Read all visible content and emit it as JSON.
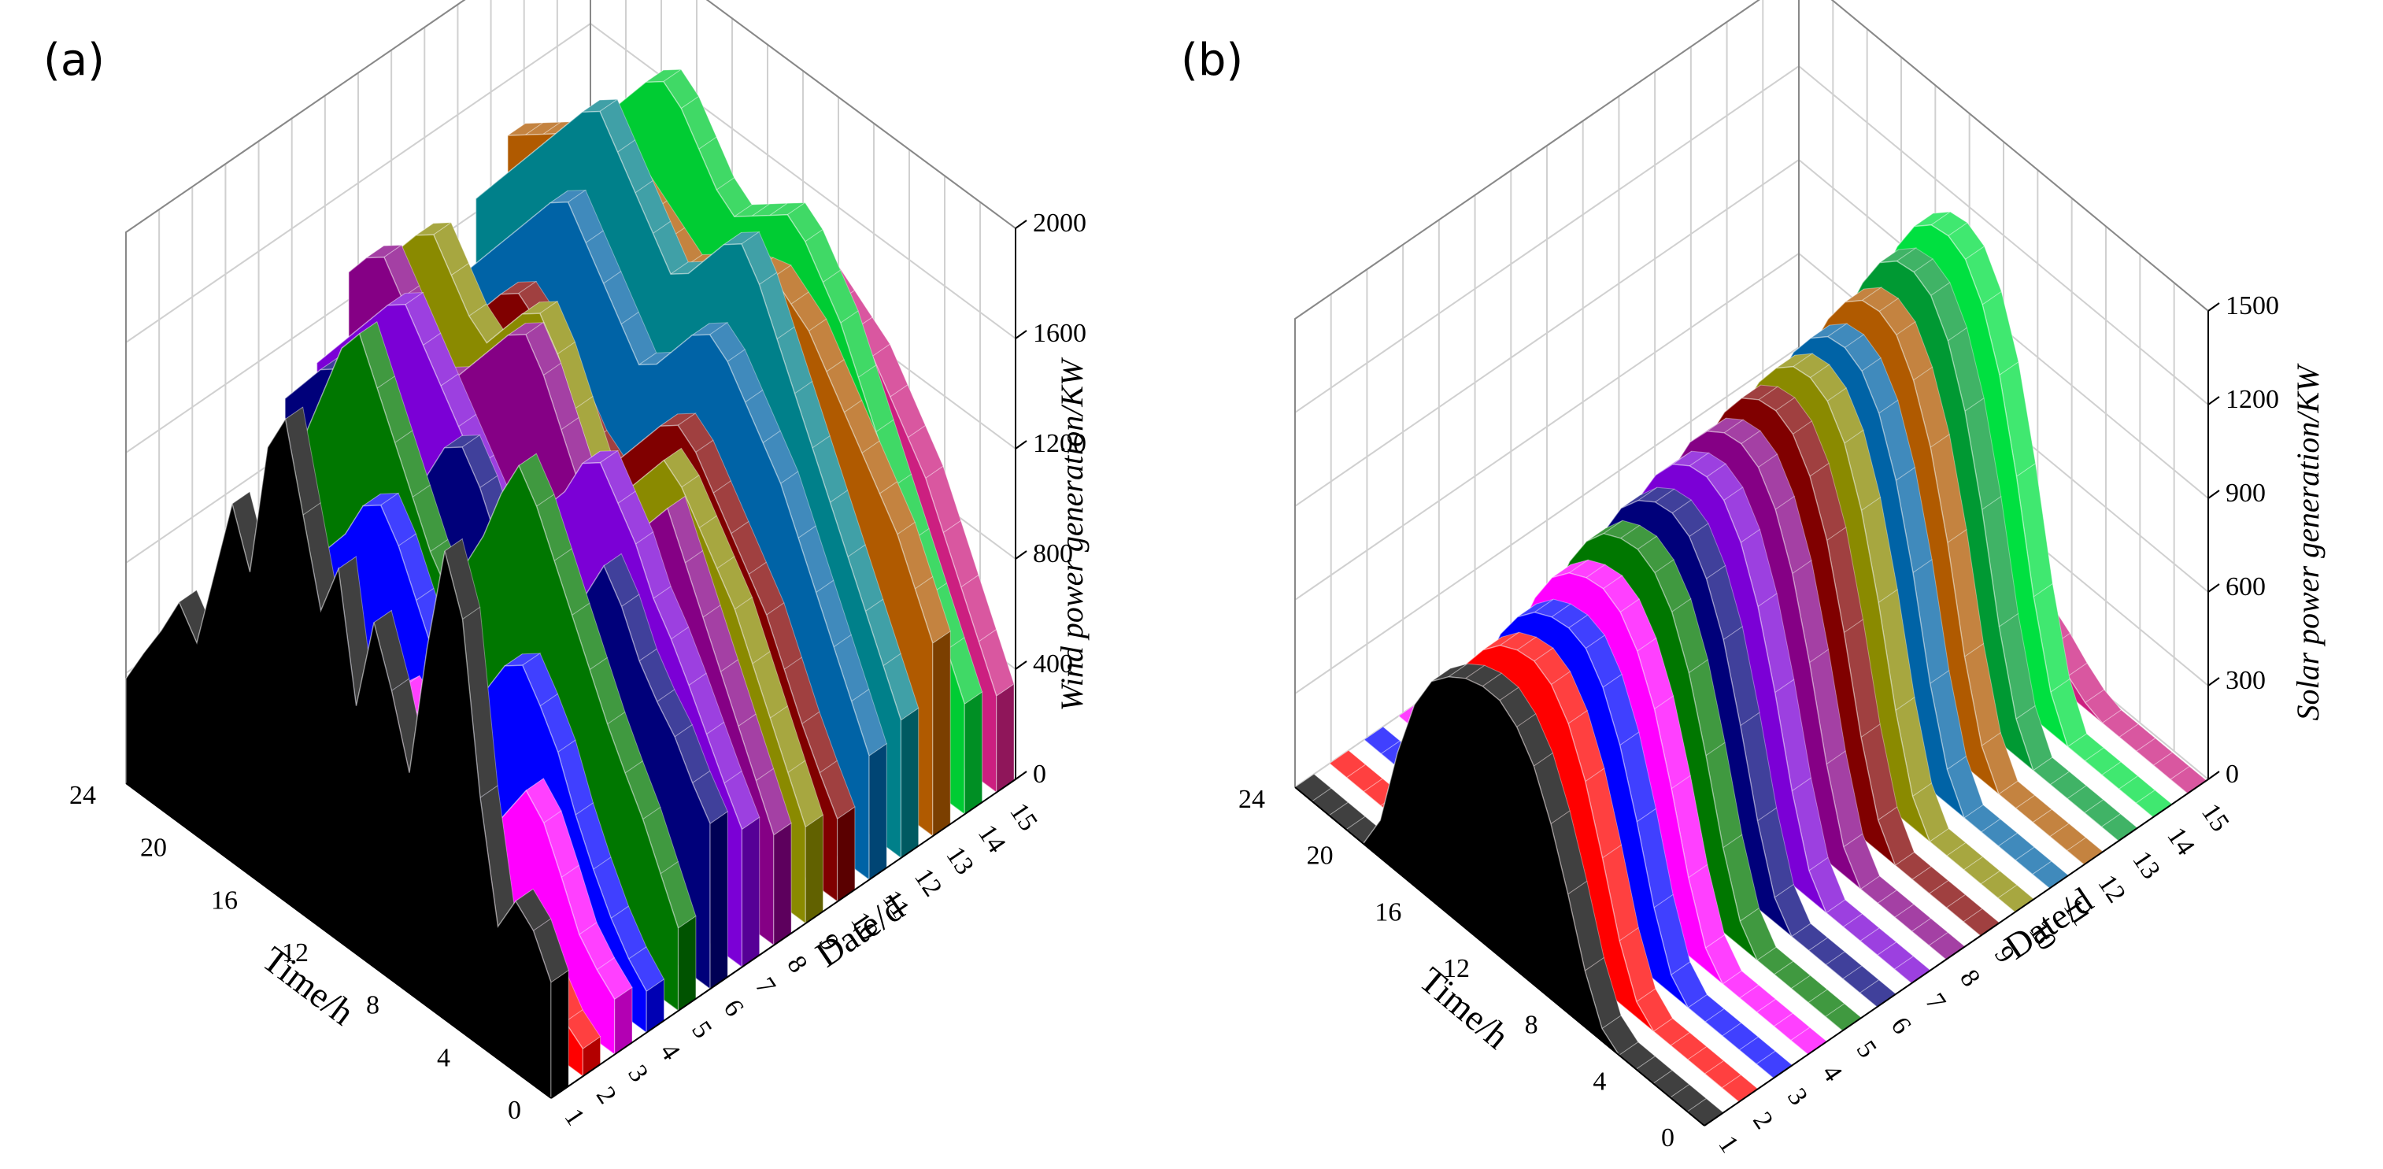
{
  "chart_data": [
    {
      "panel": "(a)",
      "type": "3d-waterfall",
      "zlabel": "Wind power generation/KW",
      "xlabel": "Time/h",
      "ylabel": "Date/d",
      "time_ticks": [
        "0",
        "4",
        "8",
        "12",
        "16",
        "20",
        "24"
      ],
      "date_ticks": [
        "1",
        "2",
        "3",
        "4",
        "5",
        "6",
        "7",
        "8",
        "9",
        "10",
        "11",
        "12",
        "13",
        "14",
        "15"
      ],
      "z_ticks": [
        "0",
        "400",
        "800",
        "1200",
        "1600",
        "2000"
      ],
      "zlim": [
        0,
        2000
      ],
      "hours": [
        0,
        1,
        2,
        3,
        4,
        5,
        6,
        7,
        8,
        9,
        10,
        11,
        12,
        13,
        14,
        15,
        16,
        17,
        18,
        19,
        20,
        21,
        22,
        23,
        24
      ],
      "series": [
        {
          "name": "1",
          "color": "#000000",
          "values": [
            420,
            560,
            620,
            480,
            900,
            1500,
            1700,
            1300,
            800,
            1050,
            1250,
            900,
            1350,
            1150,
            1450,
            1750,
            1600,
            1100,
            1300,
            1000,
            700,
            800,
            650,
            520,
            380
          ]
        },
        {
          "name": "2",
          "color": "#ff0000",
          "values": [
            100,
            150,
            250,
            120,
            60,
            180,
            300,
            420,
            260,
            150,
            380,
            520,
            600,
            350,
            250,
            180,
            300,
            450,
            380,
            220,
            180,
            250,
            330,
            200,
            120
          ]
        },
        {
          "name": "3",
          "color": "#ff00ff",
          "values": [
            200,
            260,
            340,
            500,
            650,
            720,
            600,
            480,
            350,
            420,
            560,
            700,
            760,
            680,
            520,
            400,
            450,
            600,
            720,
            640,
            500,
            420,
            350,
            260,
            200
          ]
        },
        {
          "name": "4",
          "color": "#0000ff",
          "values": [
            150,
            220,
            320,
            450,
            600,
            780,
            900,
            1000,
            950,
            820,
            700,
            650,
            800,
            950,
            1100,
            1200,
            1150,
            1000,
            900,
            800,
            700,
            600,
            500,
            380,
            260
          ]
        },
        {
          "name": "5",
          "color": "#007700",
          "values": [
            300,
            450,
            600,
            720,
            850,
            1000,
            1150,
            1300,
            1450,
            1550,
            1400,
            1200,
            1050,
            900,
            1000,
            1150,
            1300,
            1450,
            1600,
            1500,
            1300,
            1100,
            900,
            700,
            550
          ]
        },
        {
          "name": "6",
          "color": "#00007a",
          "values": [
            600,
            700,
            820,
            900,
            1000,
            1150,
            1250,
            1100,
            950,
            850,
            800,
            900,
            1050,
            1200,
            1300,
            1250,
            1100,
            1000,
            950,
            1050,
            1150,
            1250,
            1200,
            1100,
            1000
          ]
        },
        {
          "name": "7",
          "color": "#7b00d6",
          "values": [
            500,
            620,
            750,
            880,
            1000,
            1100,
            1250,
            1350,
            1450,
            1400,
            1250,
            1150,
            1050,
            950,
            1000,
            1100,
            1200,
            1300,
            1400,
            1500,
            1450,
            1350,
            1250,
            1150,
            1050
          ]
        },
        {
          "name": "8",
          "color": "#850085",
          "values": [
            400,
            550,
            700,
            850,
            1000,
            1150,
            1300,
            1200,
            1050,
            950,
            1000,
            1150,
            1300,
            1450,
            1550,
            1500,
            1400,
            1300,
            1200,
            1150,
            1250,
            1350,
            1450,
            1400,
            1300
          ]
        },
        {
          "name": "9",
          "color": "#8a8a00",
          "values": [
            350,
            500,
            650,
            800,
            950,
            1050,
            1150,
            1250,
            1300,
            1200,
            1100,
            1000,
            1100,
            1250,
            1400,
            1500,
            1450,
            1350,
            1250,
            1300,
            1400,
            1500,
            1450,
            1350,
            1250
          ]
        },
        {
          "name": "10",
          "color": "#800000",
          "values": [
            300,
            420,
            550,
            700,
            850,
            950,
            1050,
            1150,
            1250,
            1300,
            1250,
            1150,
            1050,
            950,
            1000,
            1100,
            1200,
            1300,
            1350,
            1300,
            1200,
            1100,
            1000,
            900,
            800
          ]
        },
        {
          "name": "11",
          "color": "#0063a6",
          "values": [
            450,
            600,
            750,
            900,
            1050,
            1200,
            1300,
            1400,
            1500,
            1550,
            1500,
            1400,
            1300,
            1250,
            1350,
            1450,
            1550,
            1650,
            1600,
            1500,
            1400,
            1300,
            1200,
            1100,
            1000
          ]
        },
        {
          "name": "12",
          "color": "#00808a",
          "values": [
            500,
            650,
            800,
            950,
            1100,
            1250,
            1400,
            1550,
            1700,
            1800,
            1750,
            1650,
            1550,
            1500,
            1600,
            1700,
            1800,
            1900,
            1850,
            1750,
            1650,
            1550,
            1450,
            1350,
            1250
          ]
        },
        {
          "name": "13",
          "color": "#b05a00",
          "values": [
            700,
            850,
            1000,
            1100,
            1200,
            1300,
            1400,
            1500,
            1550,
            1600,
            1580,
            1550,
            1500,
            1450,
            1400,
            1450,
            1500,
            1550,
            1600,
            1650,
            1600,
            1550,
            1500,
            1450,
            1400
          ]
        },
        {
          "name": "14",
          "color": "#00cc33",
          "values": [
            400,
            550,
            700,
            850,
            1000,
            1150,
            1300,
            1450,
            1550,
            1650,
            1700,
            1650,
            1600,
            1550,
            1600,
            1700,
            1800,
            1850,
            1800,
            1700,
            1600,
            1500,
            1400,
            1300,
            1200
          ]
        },
        {
          "name": "15",
          "color": "#cc1f80",
          "values": [
            350,
            500,
            650,
            800,
            950,
            1050,
            1150,
            1250,
            1300,
            1350,
            1400,
            1350,
            1300,
            1250,
            1300,
            1350,
            1400,
            1450,
            1400,
            1350,
            1300,
            1250,
            1200,
            1150,
            1100
          ]
        }
      ]
    },
    {
      "panel": "(b)",
      "type": "3d-waterfall",
      "zlabel": "Solar power generation/KW",
      "xlabel": "Time/h",
      "ylabel": "Date/d",
      "time_ticks": [
        "0",
        "4",
        "8",
        "12",
        "16",
        "20",
        "24"
      ],
      "date_ticks": [
        "1",
        "2",
        "3",
        "4",
        "5",
        "6",
        "7",
        "8",
        "9",
        "10",
        "11",
        "12",
        "13",
        "14",
        "15"
      ],
      "z_ticks": [
        "0",
        "300",
        "600",
        "900",
        "1200",
        "1500"
      ],
      "zlim": [
        0,
        1500
      ],
      "hours": [
        0,
        1,
        2,
        3,
        4,
        5,
        6,
        7,
        8,
        9,
        10,
        11,
        12,
        13,
        14,
        15,
        16,
        17,
        18,
        19,
        20,
        21,
        22,
        23,
        24
      ],
      "series": [
        {
          "name": "1",
          "color": "#000000",
          "values": [
            0,
            0,
            0,
            0,
            0,
            0,
            40,
            180,
            380,
            560,
            700,
            780,
            820,
            820,
            800,
            760,
            700,
            580,
            380,
            120,
            0,
            0,
            0,
            0,
            0
          ]
        },
        {
          "name": "2",
          "color": "#ff0000",
          "values": [
            0,
            0,
            0,
            0,
            0,
            0,
            50,
            200,
            420,
            620,
            760,
            840,
            870,
            860,
            830,
            770,
            680,
            520,
            320,
            90,
            0,
            0,
            0,
            0,
            0
          ]
        },
        {
          "name": "3",
          "color": "#0000ff",
          "values": [
            0,
            0,
            0,
            0,
            0,
            0,
            60,
            230,
            460,
            660,
            800,
            880,
            900,
            890,
            860,
            800,
            700,
            540,
            330,
            100,
            0,
            0,
            0,
            0,
            0
          ]
        },
        {
          "name": "4",
          "color": "#ff00ff",
          "values": [
            0,
            0,
            0,
            0,
            0,
            0,
            70,
            250,
            490,
            700,
            840,
            920,
            950,
            940,
            910,
            850,
            740,
            580,
            350,
            110,
            0,
            0,
            0,
            0,
            0
          ]
        },
        {
          "name": "5",
          "color": "#007700",
          "values": [
            0,
            0,
            0,
            0,
            0,
            0,
            80,
            270,
            520,
            740,
            890,
            970,
            1000,
            990,
            960,
            890,
            780,
            610,
            370,
            120,
            0,
            0,
            0,
            0,
            0
          ]
        },
        {
          "name": "6",
          "color": "#00007a",
          "values": [
            0,
            0,
            0,
            0,
            0,
            0,
            80,
            280,
            540,
            770,
            920,
            1010,
            1040,
            1030,
            990,
            920,
            800,
            630,
            380,
            130,
            0,
            0,
            0,
            0,
            0
          ]
        },
        {
          "name": "7",
          "color": "#7b00d6",
          "values": [
            0,
            0,
            0,
            0,
            0,
            0,
            90,
            300,
            570,
            800,
            960,
            1050,
            1080,
            1070,
            1030,
            950,
            830,
            650,
            400,
            140,
            0,
            0,
            0,
            0,
            0
          ]
        },
        {
          "name": "8",
          "color": "#850085",
          "values": [
            0,
            0,
            0,
            0,
            0,
            0,
            90,
            310,
            590,
            830,
            990,
            1080,
            1110,
            1100,
            1060,
            980,
            850,
            670,
            410,
            140,
            0,
            0,
            0,
            0,
            0
          ]
        },
        {
          "name": "9",
          "color": "#800000",
          "values": [
            0,
            0,
            0,
            0,
            0,
            0,
            100,
            320,
            610,
            860,
            1020,
            1110,
            1140,
            1130,
            1090,
            1000,
            870,
            680,
            420,
            150,
            0,
            0,
            0,
            0,
            0
          ]
        },
        {
          "name": "10",
          "color": "#8a8a00",
          "values": [
            0,
            0,
            0,
            0,
            0,
            0,
            100,
            330,
            630,
            880,
            1050,
            1140,
            1170,
            1160,
            1110,
            1020,
            890,
            700,
            430,
            150,
            0,
            0,
            0,
            0,
            0
          ]
        },
        {
          "name": "11",
          "color": "#0063a6",
          "values": [
            0,
            0,
            0,
            0,
            0,
            0,
            110,
            340,
            650,
            900,
            1070,
            1160,
            1190,
            1180,
            1130,
            1040,
            900,
            710,
            440,
            160,
            0,
            0,
            0,
            0,
            0
          ]
        },
        {
          "name": "12",
          "color": "#b05a00",
          "values": [
            0,
            0,
            0,
            0,
            0,
            0,
            110,
            350,
            670,
            930,
            1100,
            1200,
            1230,
            1220,
            1170,
            1070,
            930,
            730,
            450,
            160,
            0,
            0,
            0,
            0,
            0
          ]
        },
        {
          "name": "13",
          "color": "#009933",
          "values": [
            0,
            0,
            0,
            0,
            0,
            0,
            120,
            370,
            700,
            970,
            1150,
            1250,
            1280,
            1270,
            1220,
            1110,
            960,
            760,
            470,
            170,
            0,
            0,
            0,
            0,
            0
          ]
        },
        {
          "name": "14",
          "color": "#00e040",
          "values": [
            0,
            0,
            0,
            0,
            0,
            0,
            130,
            390,
            730,
            1010,
            1190,
            1290,
            1320,
            1310,
            1260,
            1150,
            990,
            780,
            480,
            170,
            0,
            0,
            0,
            0,
            0
          ]
        },
        {
          "name": "15",
          "color": "#cc1f80",
          "values": [
            0,
            0,
            0,
            0,
            0,
            0,
            20,
            60,
            110,
            150,
            180,
            200,
            210,
            200,
            190,
            170,
            140,
            100,
            60,
            20,
            0,
            0,
            0,
            0,
            0
          ]
        }
      ]
    }
  ]
}
